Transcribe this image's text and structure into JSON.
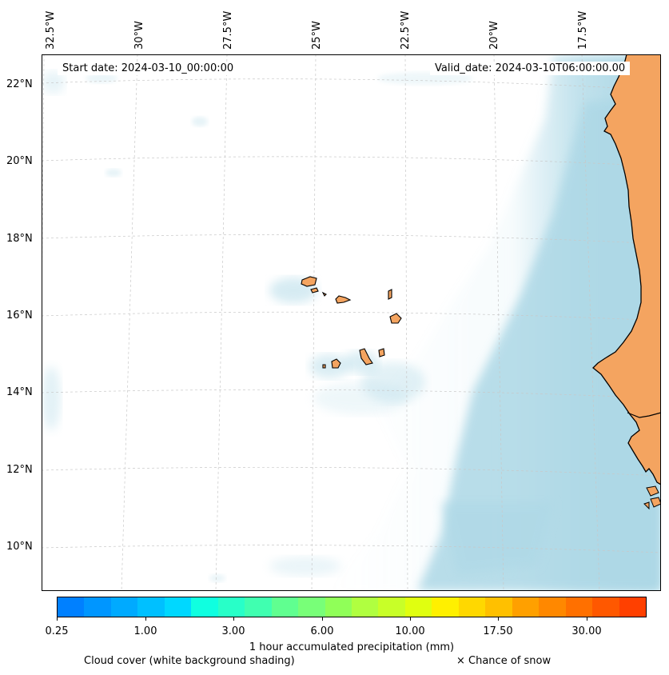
{
  "map": {
    "start_date": "Start date: 2024-03-10_00:00:00",
    "valid_date": "Valid_date: 2024-03-10T06:00:00.00",
    "lon_labels": [
      "32.5°W",
      "30°W",
      "27.5°W",
      "25°W",
      "22.5°W",
      "20°W",
      "17.5°W"
    ],
    "lat_labels": [
      "22°N",
      "20°N",
      "18°N",
      "16°N",
      "14°N",
      "12°N",
      "10°N"
    ],
    "colors": {
      "land": "#f4a460",
      "cloud": "#add8e6",
      "coastline": "#000000",
      "gridline": "#c8c8c8"
    }
  },
  "colorbar": {
    "title": "1 hour accumulated precipitation (mm)",
    "tick_labels": [
      "0.25",
      "1.00",
      "3.00",
      "6.00",
      "10.00",
      "17.50",
      "30.00"
    ],
    "colors": [
      "#0080ff",
      "#0096ff",
      "#00aaff",
      "#00c0ff",
      "#00d8ff",
      "#10ffe0",
      "#28ffc8",
      "#40ffb0",
      "#60ff90",
      "#78ff78",
      "#90ff58",
      "#b0ff40",
      "#c8ff28",
      "#e0ff10",
      "#fff000",
      "#ffd800",
      "#ffc000",
      "#ffa000",
      "#ff8800",
      "#ff7000",
      "#ff5800",
      "#ff4000"
    ]
  },
  "legend": {
    "cloud_cover": "Cloud cover (white background shading)",
    "snow": "× Chance of snow"
  }
}
